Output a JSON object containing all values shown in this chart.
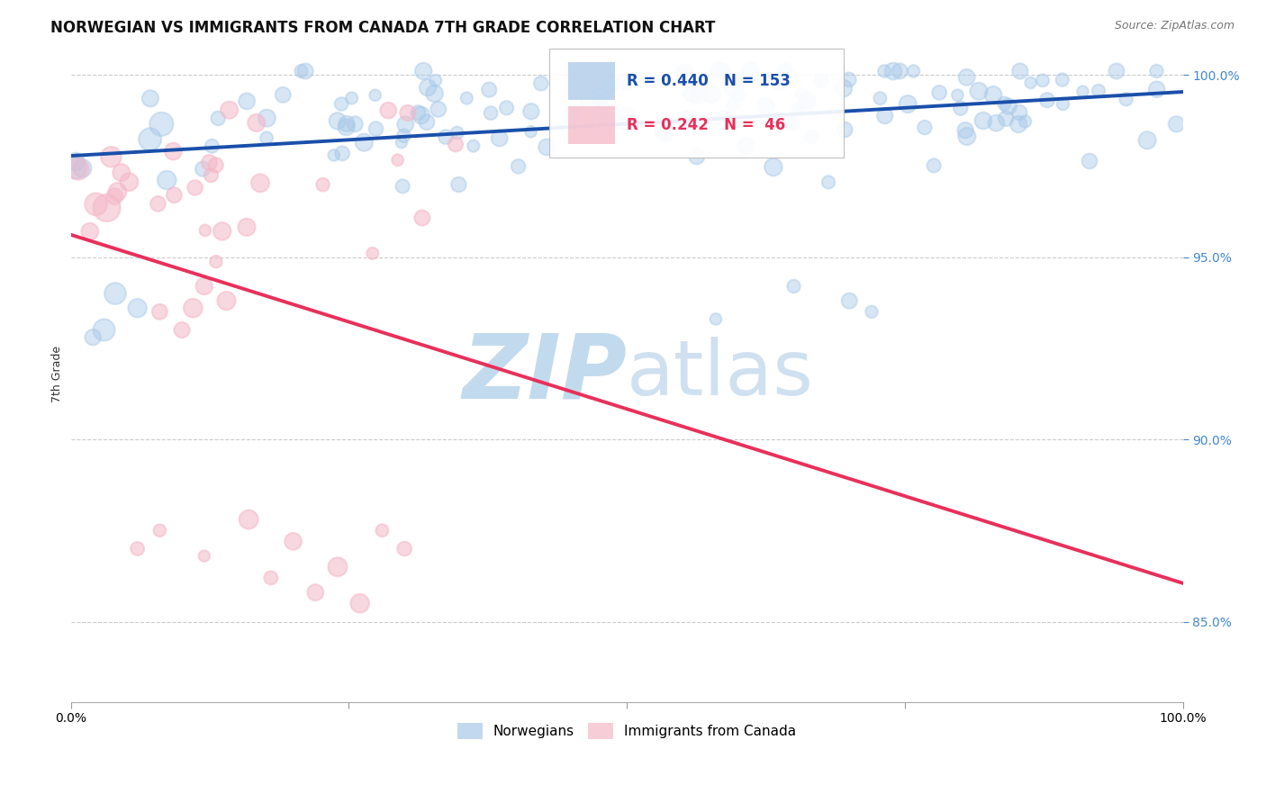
{
  "title": "NORWEGIAN VS IMMIGRANTS FROM CANADA 7TH GRADE CORRELATION CHART",
  "source": "Source: ZipAtlas.com",
  "xlabel": "",
  "ylabel": "7th Grade",
  "xlim": [
    0.0,
    1.0
  ],
  "ylim": [
    0.828,
    1.008
  ],
  "yticks": [
    0.85,
    0.9,
    0.95,
    1.0
  ],
  "ytick_labels": [
    "85.0%",
    "90.0%",
    "95.0%",
    "100.0%"
  ],
  "xtick_labels": [
    "0.0%",
    "",
    "",
    "",
    "100.0%"
  ],
  "legend_norwegians": "Norwegians",
  "legend_immigrants": "Immigrants from Canada",
  "blue_R": 0.44,
  "blue_N": 153,
  "pink_R": 0.242,
  "pink_N": 46,
  "blue_color": "#a8c8e8",
  "pink_color": "#f4b8c8",
  "blue_line_color": "#1a4faa",
  "pink_line_color": "#e8305a",
  "watermark_color": "#cce0f0",
  "grid_color": "#cccccc",
  "background_color": "#ffffff",
  "title_fontsize": 12,
  "axis_label_fontsize": 9,
  "tick_fontsize": 10,
  "ytick_color": "#4488cc",
  "source_color": "#777777"
}
